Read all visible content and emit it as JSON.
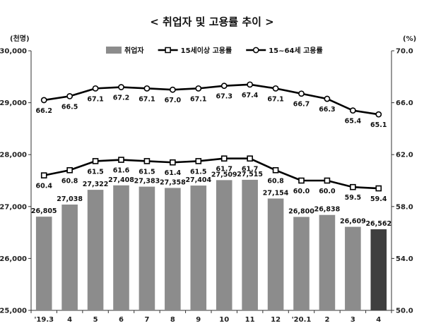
{
  "chart_data": {
    "type": "bar",
    "title": "< 취업자 및 고용률 추이 >",
    "left_unit": "(천명)",
    "right_unit": "(%)",
    "categories": [
      "'19.3",
      "4",
      "5",
      "6",
      "7",
      "8",
      "9",
      "10",
      "11",
      "12",
      "'20.1",
      "2",
      "3",
      "4"
    ],
    "left_axis": {
      "min": 25000,
      "max": 30000,
      "ticks": [
        "25,000",
        "26,000",
        "27,000",
        "28,000",
        "29,000",
        "30,000"
      ]
    },
    "right_axis": {
      "min": 50.0,
      "max": 70.0,
      "ticks": [
        "50.0",
        "54.0",
        "58.0",
        "62.0",
        "66.0",
        "70.0"
      ]
    },
    "series": [
      {
        "name": "취업자",
        "kind": "bar",
        "axis": "left",
        "color": "#8c8c8c",
        "highlight_last_color": "#3f3f3f",
        "values": [
          26805,
          27038,
          27322,
          27408,
          27383,
          27358,
          27404,
          27509,
          27515,
          27154,
          26800,
          26838,
          26609,
          26562
        ],
        "labels": [
          "26,805",
          "27,038",
          "27,322",
          "27,408",
          "27,383",
          "27,358",
          "27,404",
          "27,509",
          "27,515",
          "27,154",
          "26,800",
          "26,838",
          "26,609",
          "26,562"
        ]
      },
      {
        "name": "15세이상 고용률",
        "kind": "line",
        "axis": "right",
        "marker": "square",
        "color": "#000000",
        "values": [
          60.4,
          60.8,
          61.5,
          61.6,
          61.5,
          61.4,
          61.5,
          61.7,
          61.7,
          60.8,
          60.0,
          60.0,
          59.5,
          59.4
        ],
        "labels": [
          "60.4",
          "60.8",
          "61.5",
          "61.6",
          "61.5",
          "61.4",
          "61.5",
          "61.7",
          "61.7",
          "60.8",
          "60.0",
          "60.0",
          "59.5",
          "59.4"
        ]
      },
      {
        "name": "15~64세 고용률",
        "kind": "line",
        "axis": "right",
        "marker": "circle",
        "color": "#000000",
        "values": [
          66.2,
          66.5,
          67.1,
          67.2,
          67.1,
          67.0,
          67.1,
          67.3,
          67.4,
          67.1,
          66.7,
          66.3,
          65.4,
          65.1
        ],
        "labels": [
          "66.2",
          "66.5",
          "67.1",
          "67.2",
          "67.1",
          "67.0",
          "67.1",
          "67.3",
          "67.4",
          "67.1",
          "66.7",
          "66.3",
          "65.4",
          "65.1"
        ]
      }
    ],
    "grid": false,
    "legend_position": "top"
  }
}
